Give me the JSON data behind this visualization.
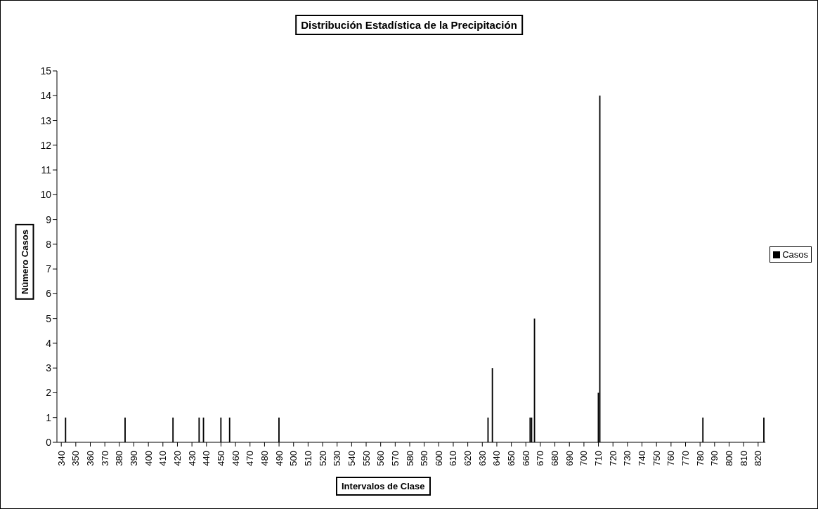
{
  "chart_data": {
    "type": "bar",
    "title": "Distribución Estadística de la Precipitación",
    "xlabel": "Intervalos de Clase",
    "ylabel": "Número Casos",
    "x": [
      343,
      384,
      417,
      435,
      438,
      450,
      456,
      490,
      634,
      637,
      663,
      664,
      666,
      710,
      711,
      782,
      824
    ],
    "series": [
      {
        "name": "Casos",
        "color": "#000000",
        "values": [
          1,
          1,
          1,
          1,
          1,
          1,
          1,
          1,
          1,
          3,
          1,
          1,
          5,
          2,
          14,
          1,
          1
        ]
      }
    ],
    "xlim": [
      337,
      825
    ],
    "xticks": [
      340,
      350,
      360,
      370,
      380,
      390,
      400,
      410,
      420,
      430,
      440,
      450,
      460,
      470,
      480,
      490,
      500,
      510,
      520,
      530,
      540,
      550,
      560,
      570,
      580,
      590,
      600,
      610,
      620,
      630,
      640,
      650,
      660,
      670,
      680,
      690,
      700,
      710,
      720,
      730,
      740,
      750,
      760,
      770,
      780,
      790,
      800,
      810,
      820
    ],
    "ylim": [
      0,
      15
    ],
    "yticks": [
      0,
      1,
      2,
      3,
      4,
      5,
      6,
      7,
      8,
      9,
      10,
      11,
      12,
      13,
      14,
      15
    ],
    "grid": false,
    "legend": "right"
  }
}
